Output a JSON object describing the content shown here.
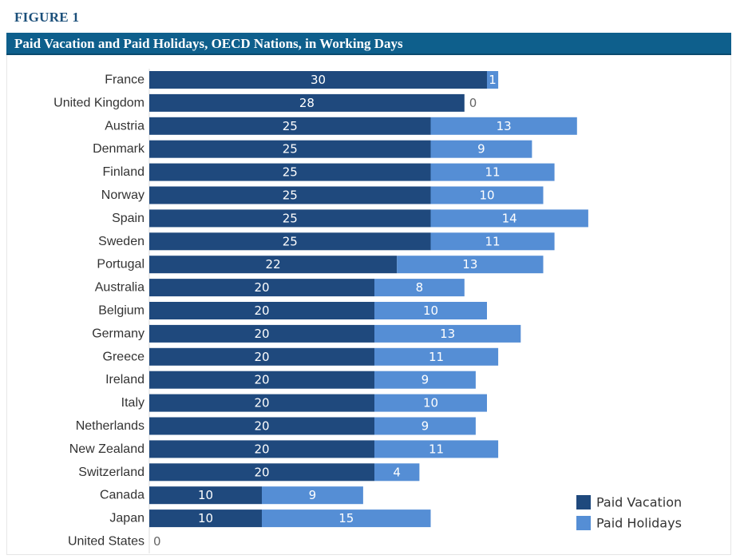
{
  "figure_label": "FIGURE 1",
  "chart_data": {
    "type": "bar",
    "orientation": "horizontal",
    "stacked": true,
    "title": "Paid Vacation and Paid Holidays, OECD Nations, in Working Days",
    "categories": [
      "France",
      "United Kingdom",
      "Austria",
      "Denmark",
      "Finland",
      "Norway",
      "Spain",
      "Sweden",
      "Portugal",
      "Australia",
      "Belgium",
      "Germany",
      "Greece",
      "Ireland",
      "Italy",
      "Netherlands",
      "New Zealand",
      "Switzerland",
      "Canada",
      "Japan",
      "United States"
    ],
    "series": [
      {
        "name": "Paid Vacation",
        "color": "#1f497d",
        "values": [
          30,
          28,
          25,
          25,
          25,
          25,
          25,
          25,
          22,
          20,
          20,
          20,
          20,
          20,
          20,
          20,
          20,
          20,
          10,
          10,
          0
        ]
      },
      {
        "name": "Paid Holidays",
        "color": "#558ed5",
        "values": [
          1,
          0,
          13,
          9,
          11,
          10,
          14,
          11,
          13,
          8,
          10,
          13,
          11,
          9,
          10,
          9,
          11,
          4,
          9,
          15,
          null
        ]
      }
    ],
    "xlim": [
      0,
      45
    ],
    "grid": false,
    "legend": "bottom-right"
  }
}
